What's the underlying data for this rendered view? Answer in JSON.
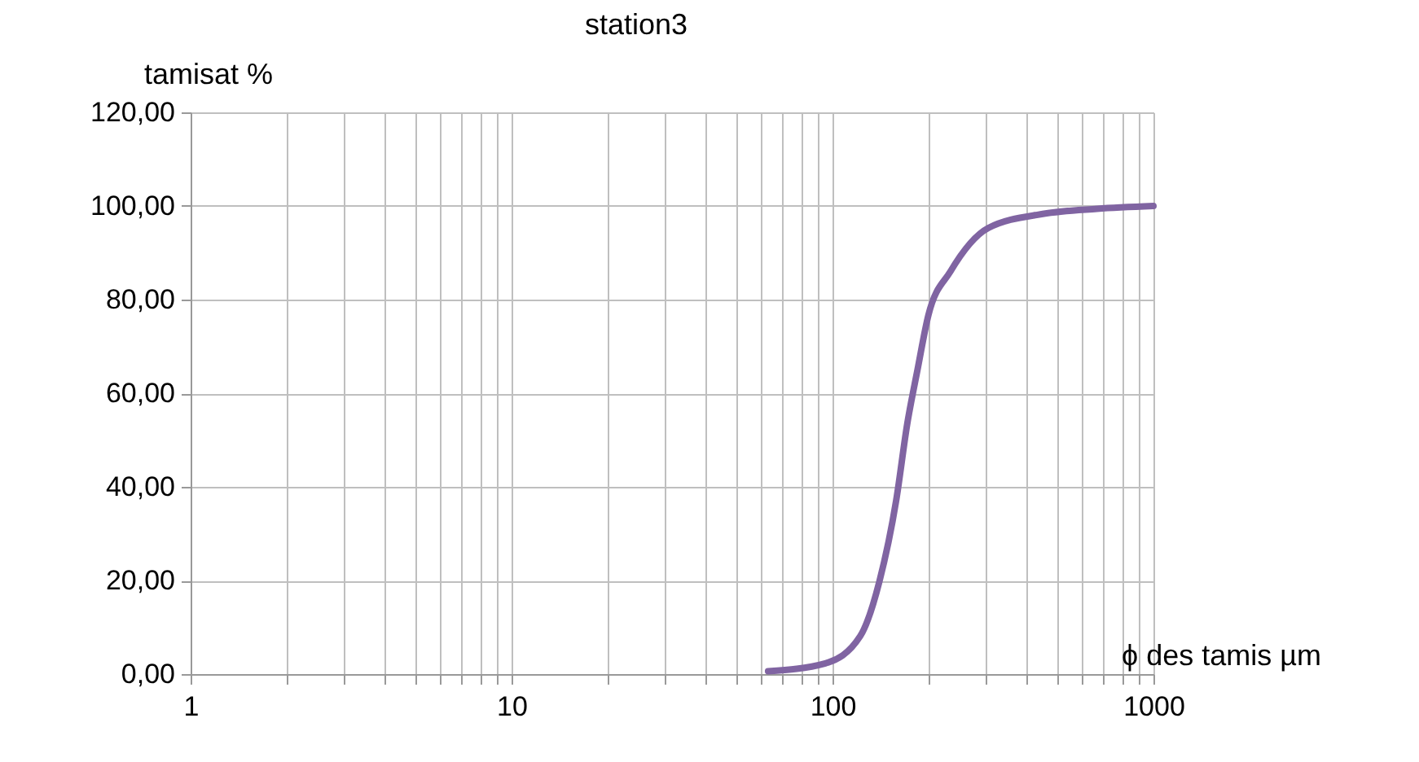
{
  "chart_data": {
    "type": "line",
    "title": "station3",
    "xlabel": "ϕ des tamis µm",
    "ylabel": "tamisat %",
    "log": "x",
    "x": [
      63,
      95,
      122,
      140,
      158,
      171,
      184,
      199,
      233,
      306,
      452,
      667,
      1000
    ],
    "series": [
      {
        "color": "#8064a2",
        "values": [
          0.6,
          2.3,
          8.1,
          19.8,
          37.2,
          53.5,
          65,
          76.7,
          86,
          95.3,
          98.3,
          99.4,
          100
        ]
      }
    ],
    "xlim": [
      1,
      1000
    ],
    "xticks": [
      1,
      {
        "value": 2,
        "label": null
      },
      {
        "value": 3,
        "label": null
      },
      {
        "value": 4,
        "label": null
      },
      {
        "value": 5,
        "label": null
      },
      {
        "value": 6,
        "label": null
      },
      {
        "value": 7,
        "label": null
      },
      {
        "value": 8,
        "label": null
      },
      {
        "value": 9,
        "label": null
      },
      10,
      {
        "value": 20,
        "label": null
      },
      {
        "value": 30,
        "label": null
      },
      {
        "value": 40,
        "label": null
      },
      {
        "value": 50,
        "label": null
      },
      {
        "value": 60,
        "label": null
      },
      {
        "value": 70,
        "label": null
      },
      {
        "value": 80,
        "label": null
      },
      {
        "value": 90,
        "label": null
      },
      100,
      {
        "value": 200,
        "label": null
      },
      {
        "value": 300,
        "label": null
      },
      {
        "value": 400,
        "label": null
      },
      {
        "value": 500,
        "label": null
      },
      {
        "value": 600,
        "label": null
      },
      {
        "value": 700,
        "label": null
      },
      {
        "value": 800,
        "label": null
      },
      {
        "value": 900,
        "label": null
      },
      1000
    ],
    "ylim": [
      0,
      120
    ],
    "yticks": [
      {
        "value": 0,
        "label": "0,00"
      },
      {
        "value": 20,
        "label": "20,00"
      },
      {
        "value": 40,
        "label": "40,00"
      },
      {
        "value": 60,
        "label": "60,00"
      },
      {
        "value": 80,
        "label": "80,00"
      },
      {
        "value": 100,
        "label": "100,00"
      },
      {
        "value": 120,
        "label": "120,00"
      }
    ],
    "grid": true,
    "legend": false,
    "marker": "none",
    "line_style": "solid"
  }
}
